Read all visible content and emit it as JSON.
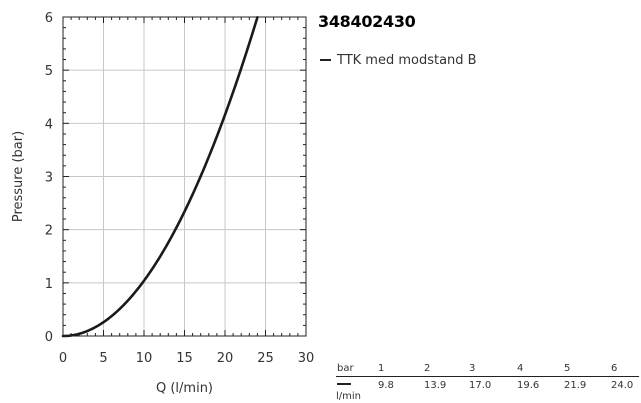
{
  "title": "348402430",
  "legend": {
    "series_name": "TTK med modstand B"
  },
  "chart_data": {
    "type": "line",
    "title": "348402430",
    "xlabel": "Q (l/min)",
    "ylabel": "Pressure (bar)",
    "xlim": [
      0,
      30
    ],
    "ylim": [
      0,
      6
    ],
    "x_ticks": [
      0,
      5,
      10,
      15,
      20,
      25,
      30
    ],
    "y_ticks": [
      0,
      1,
      2,
      3,
      4,
      5,
      6
    ],
    "grid": true,
    "legend_position": "top-right",
    "series": [
      {
        "name": "TTK med modstand B",
        "color": "#1a1a1a",
        "points": [
          [
            0,
            0
          ],
          [
            5,
            0.26
          ],
          [
            9.8,
            1.0
          ],
          [
            13.9,
            2.0
          ],
          [
            17.0,
            3.0
          ],
          [
            19.6,
            4.0
          ],
          [
            21.9,
            5.0
          ],
          [
            24.0,
            6.0
          ]
        ]
      }
    ]
  },
  "table": {
    "row_header": "bar",
    "unit_label": "l/min",
    "pressures": [
      "1",
      "2",
      "3",
      "4",
      "5",
      "6"
    ],
    "flows": [
      "9.8",
      "13.9",
      "17.0",
      "19.6",
      "21.9",
      "24.0"
    ]
  }
}
